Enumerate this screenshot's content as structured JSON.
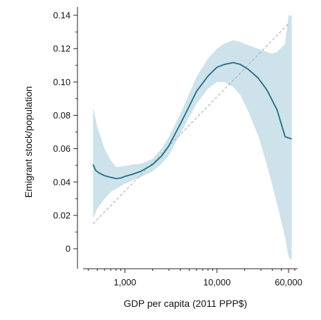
{
  "chart_data": {
    "type": "line",
    "title": "",
    "xlabel": "GDP per capita (2011 PPP$)",
    "ylabel": "Emigrant stock/population",
    "x_scale": "log",
    "xlim": [
      350,
      75000
    ],
    "ylim": [
      -0.012,
      0.145
    ],
    "x_ticks": [
      {
        "value": 1000,
        "label": "1,000"
      },
      {
        "value": 10000,
        "label": "10,000"
      },
      {
        "value": 60000,
        "label": "60,000"
      }
    ],
    "y_ticks": [
      {
        "value": 0,
        "label": "0"
      },
      {
        "value": 0.02,
        "label": "0.02"
      },
      {
        "value": 0.04,
        "label": "0.04"
      },
      {
        "value": 0.06,
        "label": "0.06"
      },
      {
        "value": 0.08,
        "label": "0.08"
      },
      {
        "value": 0.1,
        "label": "0.10"
      },
      {
        "value": 0.12,
        "label": "0.12"
      },
      {
        "value": 0.14,
        "label": "0.14"
      }
    ],
    "grid": false,
    "colors": {
      "fit": "#1f6b82",
      "band": "#cde2ea",
      "reference": "#a8a8a8"
    },
    "series": [
      {
        "kind": "fit",
        "x": [
          450,
          480,
          520,
          600,
          700,
          800,
          900,
          1000,
          1200,
          1500,
          2000,
          2500,
          3000,
          4000,
          5000,
          6000,
          8000,
          10000,
          12000,
          15000,
          18000,
          22000,
          28000,
          35000,
          45000,
          55000,
          65000
        ],
        "y": [
          0.0505,
          0.047,
          0.0455,
          0.0438,
          0.0428,
          0.0421,
          0.0424,
          0.0434,
          0.0446,
          0.0465,
          0.0505,
          0.0556,
          0.0617,
          0.0749,
          0.0855,
          0.0944,
          0.1036,
          0.1088,
          0.1105,
          0.1116,
          0.1105,
          0.1075,
          0.1024,
          0.0951,
          0.0832,
          0.0672,
          0.0658
        ]
      },
      {
        "kind": "band",
        "x": [
          450,
          500,
          600,
          700,
          800,
          1000,
          1200,
          1500,
          2000,
          2500,
          3000,
          4000,
          5000,
          6000,
          8000,
          10000,
          12000,
          15000,
          18000,
          22000,
          28000,
          35000,
          40000,
          45000,
          55000,
          60000,
          65000
        ],
        "upper": [
          0.085,
          0.073,
          0.06,
          0.053,
          0.049,
          0.0495,
          0.0505,
          0.051,
          0.054,
          0.06,
          0.067,
          0.081,
          0.093,
          0.103,
          0.114,
          0.12,
          0.123,
          0.125,
          0.124,
          0.122,
          0.12,
          0.118,
          0.117,
          0.118,
          0.123,
          0.14,
          0.14
        ],
        "lower": [
          0.018,
          0.024,
          0.03,
          0.034,
          0.036,
          0.039,
          0.041,
          0.043,
          0.0465,
          0.051,
          0.056,
          0.069,
          0.079,
          0.087,
          0.096,
          0.1,
          0.1,
          0.097,
          0.092,
          0.082,
          0.068,
          0.05,
          0.038,
          0.027,
          0.007,
          -0.005,
          -0.007
        ]
      },
      {
        "kind": "reference",
        "x": [
          450,
          60000
        ],
        "y": [
          0.015,
          0.135
        ]
      }
    ]
  }
}
